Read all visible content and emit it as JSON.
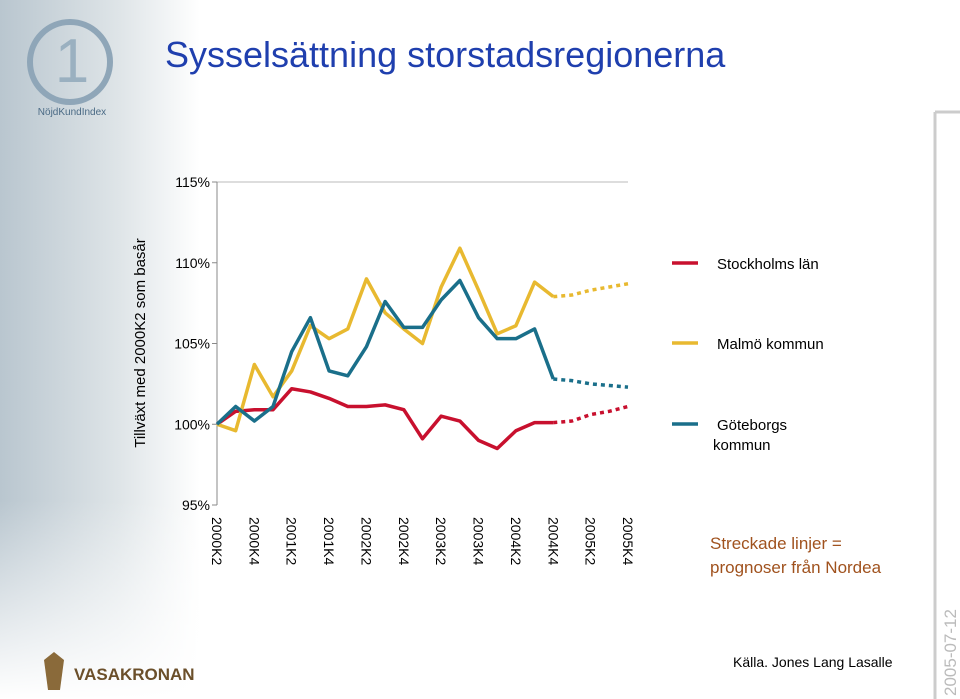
{
  "chart_data": {
    "type": "line",
    "title": "Sysselsättning storstadsregionerna",
    "y_label": "Tillväxt med 2000K2 som basår",
    "categories": [
      "2000K2",
      null,
      "2000K4",
      null,
      "2001K2",
      null,
      "2001K4",
      null,
      "2002K2",
      null,
      "2002K4",
      null,
      "2003K2",
      null,
      "2003K4",
      null,
      "2004K2",
      null,
      "2004K4",
      null,
      "2005K2",
      null,
      "2005K4"
    ],
    "ylim": [
      95,
      115
    ],
    "yticks": [
      {
        "value": 95,
        "label": "95%"
      },
      {
        "value": 100,
        "label": "100%"
      },
      {
        "value": 105,
        "label": "105%"
      },
      {
        "value": 110,
        "label": "110%"
      },
      {
        "value": 115,
        "label": "115%"
      }
    ],
    "series": [
      {
        "name": "Stockholms län",
        "color": "#c8102e",
        "values": [
          100,
          100.8,
          100.9,
          100.9,
          102.2,
          102.0,
          101.6,
          101.1,
          101.1,
          101.2,
          100.9,
          99.1,
          100.5,
          100.2,
          99.0,
          98.5,
          99.6,
          100.1,
          100.1,
          null,
          null,
          null,
          null
        ],
        "forecast": [
          null,
          null,
          null,
          null,
          null,
          null,
          null,
          null,
          null,
          null,
          null,
          null,
          null,
          null,
          null,
          null,
          null,
          null,
          100.1,
          100.2,
          100.6,
          100.8,
          101.1
        ]
      },
      {
        "name": "Malmö kommun",
        "color": "#e8b930",
        "values": [
          100,
          99.6,
          103.7,
          101.7,
          103.3,
          106.1,
          105.3,
          105.9,
          109.0,
          106.9,
          105.9,
          105.0,
          108.5,
          110.9,
          108.3,
          105.6,
          106.1,
          108.8,
          107.9,
          null,
          null,
          null,
          null
        ],
        "forecast": [
          null,
          null,
          null,
          null,
          null,
          null,
          null,
          null,
          null,
          null,
          null,
          null,
          null,
          null,
          null,
          null,
          null,
          null,
          107.9,
          108.0,
          108.3,
          108.5,
          108.7
        ]
      },
      {
        "name": "Göteborgs kommun",
        "color": "#1a6f8a",
        "values": [
          100,
          101.1,
          100.2,
          101.1,
          104.5,
          106.6,
          103.3,
          103.0,
          104.8,
          107.6,
          106.0,
          106.0,
          107.7,
          108.9,
          106.6,
          105.3,
          105.3,
          105.9,
          102.8,
          null,
          null,
          null,
          null
        ],
        "forecast": [
          null,
          null,
          null,
          null,
          null,
          null,
          null,
          null,
          null,
          null,
          null,
          null,
          null,
          null,
          null,
          null,
          null,
          null,
          102.8,
          102.7,
          102.5,
          102.4,
          102.3
        ]
      }
    ],
    "note": "Streckade linjer = prognoser från Nordea",
    "source": "Källa. Jones Lang Lasalle",
    "date": "2005-07-12",
    "logo_top": "NöjdKundIndex",
    "logo_bottom": "VASAKRONAN"
  }
}
